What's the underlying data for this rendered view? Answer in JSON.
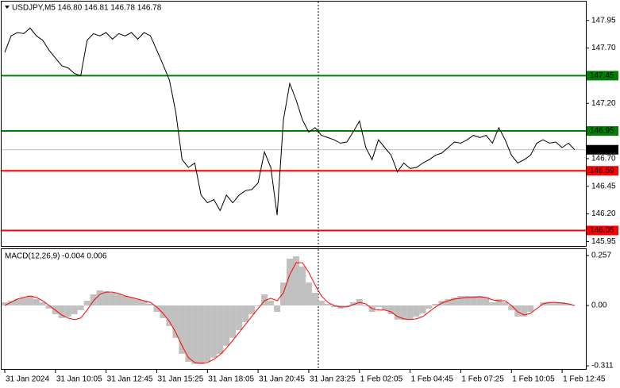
{
  "chart_data": [
    {
      "type": "line",
      "title": "USDJPY,M5  146.80 146.81 146.78 146.78",
      "color": "#000000",
      "values": [
        147.66,
        147.81,
        147.84,
        147.83,
        147.88,
        147.81,
        147.77,
        147.68,
        147.61,
        147.54,
        147.52,
        147.47,
        147.45,
        147.77,
        147.83,
        147.81,
        147.84,
        147.78,
        147.83,
        147.81,
        147.84,
        147.78,
        147.84,
        147.81,
        147.68,
        147.55,
        147.41,
        147.12,
        146.69,
        146.62,
        146.66,
        146.37,
        146.3,
        146.33,
        146.23,
        146.37,
        146.3,
        146.37,
        146.41,
        146.42,
        146.48,
        146.76,
        146.62,
        146.19,
        147.05,
        147.38,
        147.23,
        147.05,
        146.94,
        146.98,
        146.91,
        146.89,
        146.87,
        146.84,
        146.85,
        146.94,
        147.04,
        146.8,
        146.69,
        146.87,
        146.8,
        146.73,
        146.58,
        146.66,
        146.61,
        146.62,
        146.66,
        146.69,
        146.73,
        146.75,
        146.8,
        146.85,
        146.84,
        146.87,
        146.91,
        146.89,
        146.91,
        146.84,
        146.98,
        146.87,
        146.73,
        146.66,
        146.69,
        146.73,
        146.84,
        146.87,
        146.84,
        146.85,
        146.8,
        146.84,
        146.78
      ],
      "ylim": [
        145.91,
        148.12
      ],
      "yticks": [
        147.95,
        {
          "value": 147.7,
          "label": "147.70"
        },
        {
          "value": 147.2,
          "label": "147.20"
        },
        {
          "value": 146.7,
          "label": "146.70"
        },
        146.45,
        {
          "value": 146.2,
          "label": "146.20"
        },
        145.95
      ],
      "levels": [
        {
          "value": 147.45,
          "color": "#008000"
        },
        {
          "value": 146.95,
          "color": "#008000"
        },
        {
          "value": 146.59,
          "color": "#ff0000"
        },
        {
          "value": 146.05,
          "color": "#ff0000"
        }
      ],
      "current": 146.78
    },
    {
      "type": "macd",
      "title": "MACD(12,26,9) -0.004 0.006",
      "histogram": {
        "color": "#c0c0c0",
        "values": [
          0.016,
          0.024,
          0.033,
          0.04,
          0.05,
          0.033,
          0.016,
          -0.016,
          -0.045,
          -0.065,
          -0.057,
          -0.045,
          -0.024,
          0.024,
          0.057,
          0.078,
          0.073,
          0.065,
          0.057,
          0.049,
          0.041,
          0.033,
          0.024,
          0.008,
          -0.033,
          -0.065,
          -0.106,
          -0.167,
          -0.249,
          -0.29,
          -0.302,
          -0.302,
          -0.29,
          -0.269,
          -0.249,
          -0.208,
          -0.167,
          -0.127,
          -0.086,
          -0.045,
          -0.004,
          0.057,
          0.024,
          -0.033,
          0.118,
          0.241,
          0.253,
          0.2,
          0.118,
          0.065,
          0.024,
          0.008,
          -0.008,
          -0.016,
          -0.008,
          0.016,
          0.033,
          -0.004,
          -0.033,
          -0.008,
          -0.024,
          -0.045,
          -0.073,
          -0.073,
          -0.073,
          -0.057,
          -0.041,
          -0.016,
          0.008,
          0.024,
          0.033,
          0.041,
          0.049,
          0.049,
          0.049,
          0.049,
          0.041,
          0.016,
          0.033,
          0.016,
          -0.024,
          -0.057,
          -0.057,
          -0.033,
          0,
          0.016,
          0.016,
          0.016,
          0.016,
          0.008,
          0
        ]
      },
      "signal": {
        "color": "#ff0000",
        "values": [
          0,
          0.016,
          0.033,
          0.041,
          0.049,
          0.041,
          0.024,
          0,
          -0.024,
          -0.049,
          -0.065,
          -0.073,
          -0.065,
          -0.024,
          0.024,
          0.057,
          0.069,
          0.069,
          0.061,
          0.049,
          0.041,
          0.033,
          0.024,
          0.016,
          -0.008,
          -0.041,
          -0.082,
          -0.139,
          -0.208,
          -0.269,
          -0.294,
          -0.298,
          -0.294,
          -0.278,
          -0.253,
          -0.22,
          -0.18,
          -0.139,
          -0.098,
          -0.057,
          -0.016,
          0.024,
          0.037,
          0.024,
          0.065,
          0.159,
          0.22,
          0.22,
          0.171,
          0.106,
          0.049,
          0.016,
          0,
          -0.008,
          -0.008,
          0.004,
          0.016,
          0.008,
          -0.016,
          -0.024,
          -0.024,
          -0.033,
          -0.057,
          -0.069,
          -0.073,
          -0.069,
          -0.057,
          -0.033,
          -0.008,
          0.012,
          0.024,
          0.033,
          0.037,
          0.041,
          0.041,
          0.045,
          0.041,
          0.029,
          0.024,
          0.024,
          0,
          -0.033,
          -0.049,
          -0.041,
          -0.016,
          0.008,
          0.016,
          0.016,
          0.012,
          0.008,
          0
        ]
      },
      "ylim": [
        -0.327,
        0.29
      ],
      "yticks": [
        0.257,
        {
          "value": 0,
          "label": "0.00"
        },
        -0.311
      ],
      "xlim": [
        -0.5,
        91.75
      ],
      "xticks": [
        {
          "value": 0,
          "label": "31 Jan 2024"
        },
        {
          "value": 8,
          "label": "31 Jan 10:05"
        },
        {
          "value": 16,
          "label": "31 Jan 12:45"
        },
        {
          "value": 24,
          "label": "31 Jan 15:25"
        },
        {
          "value": 32,
          "label": "31 Jan 18:05"
        },
        {
          "value": 40,
          "label": "31 Jan 20:45"
        },
        {
          "value": 48,
          "label": "31 Jan 23:25"
        },
        {
          "value": 56,
          "label": "1 Feb 02:05"
        },
        {
          "value": 64,
          "label": "1 Feb 04:45"
        },
        {
          "value": 72,
          "label": "1 Feb 07:25"
        },
        {
          "value": 80,
          "label": "1 Feb 10:05"
        },
        {
          "value": 88,
          "label": "1 Feb 12:45"
        }
      ]
    }
  ]
}
